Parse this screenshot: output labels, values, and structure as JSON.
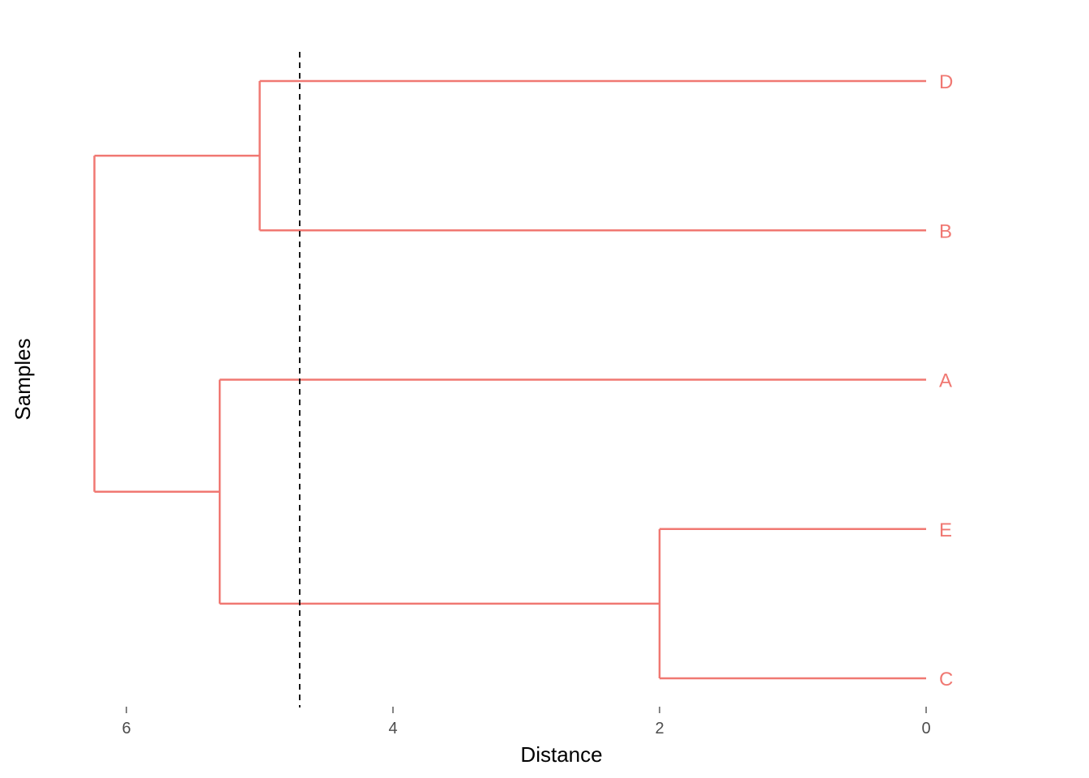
{
  "chart_data": {
    "type": "dendrogram",
    "orientation": "horizontal",
    "xlabel": "Distance",
    "ylabel": "Samples",
    "x_reversed": true,
    "xlim": [
      6.25,
      0
    ],
    "x_ticks": [
      6,
      4,
      2,
      0
    ],
    "leaves": [
      "D",
      "B",
      "A",
      "E",
      "C"
    ],
    "merges": [
      {
        "left": "E",
        "right": "C",
        "height": 2.0
      },
      {
        "left": "D",
        "right": "B",
        "height": 5.0
      },
      {
        "left": "A",
        "right": "E+C",
        "height": 5.3
      },
      {
        "left": "D+B",
        "right": "A+E+C",
        "height": 6.24
      }
    ],
    "cut_line": {
      "x": 4.7,
      "style": "dashed",
      "color": "#000000"
    },
    "branch_color": "#F07872",
    "grid": false,
    "legend": "none"
  }
}
